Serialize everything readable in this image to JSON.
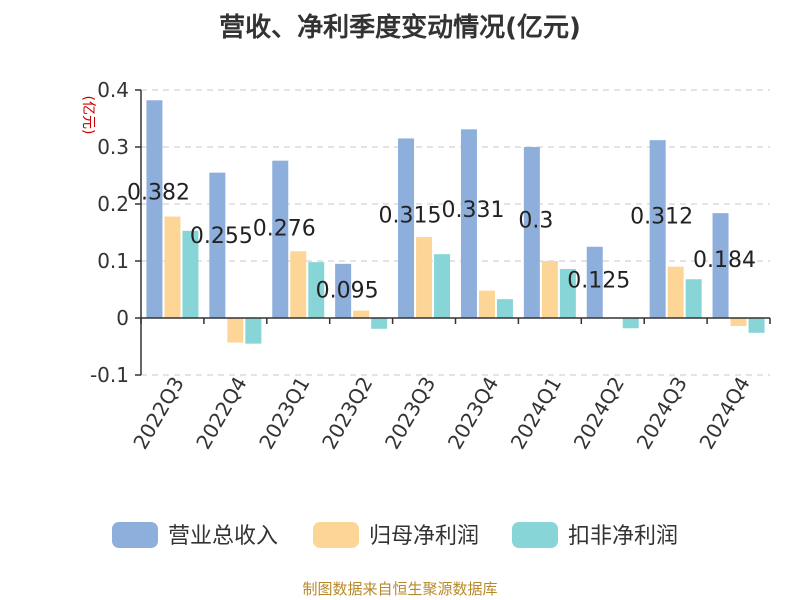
{
  "chart_data": {
    "type": "bar",
    "title": "营收、净利季度变动情况(亿元)",
    "unit_label": "(亿元)",
    "categories": [
      "2022Q3",
      "2022Q4",
      "2023Q1",
      "2023Q2",
      "2023Q3",
      "2023Q4",
      "2024Q1",
      "2024Q2",
      "2024Q3",
      "2024Q4"
    ],
    "ylim": [
      -0.1,
      0.4
    ],
    "yticks": [
      -0.1,
      0,
      0.1,
      0.2,
      0.3,
      0.4
    ],
    "ytick_labels": [
      "-0.1",
      "0",
      "0.1",
      "0.2",
      "0.3",
      "0.4"
    ],
    "grid": true,
    "legend_position": "bottom",
    "series": [
      {
        "name": "营业总收入",
        "color": "#8eaedc",
        "values": [
          0.382,
          0.255,
          0.276,
          0.095,
          0.315,
          0.331,
          0.3,
          0.125,
          0.312,
          0.184
        ],
        "data_labels": [
          "0.382",
          "0.255",
          "0.276",
          "0.095",
          "0.315",
          "0.331",
          "0.3",
          "0.125",
          "0.312",
          "0.184"
        ]
      },
      {
        "name": "归母净利润",
        "color": "#fdd596",
        "values": [
          0.178,
          -0.043,
          0.117,
          0.013,
          0.142,
          0.048,
          0.1,
          0.0,
          0.09,
          -0.014
        ]
      },
      {
        "name": "扣非净利润",
        "color": "#88d5d7",
        "values": [
          0.153,
          -0.045,
          0.098,
          -0.019,
          0.112,
          0.033,
          0.086,
          -0.018,
          0.068,
          -0.026
        ]
      }
    ],
    "source": "制图数据来自恒生聚源数据库"
  }
}
